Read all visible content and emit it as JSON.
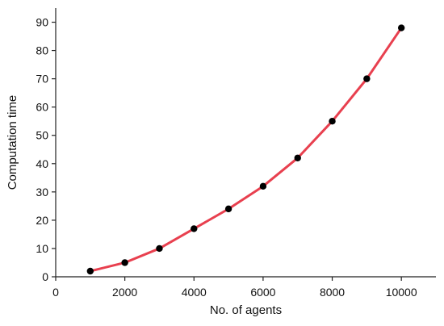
{
  "chart_data": {
    "type": "line",
    "title": "",
    "xlabel": "No. of agents",
    "ylabel": "Computation time",
    "xlim": [
      0,
      11000
    ],
    "ylim": [
      0,
      95
    ],
    "x_ticks": [
      0,
      2000,
      4000,
      6000,
      8000,
      10000
    ],
    "y_ticks": [
      0,
      10,
      20,
      30,
      40,
      50,
      60,
      70,
      80,
      90
    ],
    "grid": false,
    "legend": "none",
    "series": [
      {
        "color": "#e8404f",
        "marker_color": "#000000",
        "x": [
          1000,
          2000,
          3000,
          4000,
          5000,
          6000,
          7000,
          8000,
          9000,
          10000
        ],
        "y": [
          2,
          5,
          10,
          17,
          24,
          32,
          42,
          55,
          70,
          88
        ]
      }
    ]
  }
}
